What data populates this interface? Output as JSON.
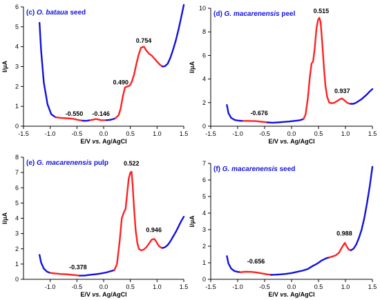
{
  "colors": {
    "oxidation": "#ff2020",
    "baseline": "#1010e0",
    "axis": "#000000",
    "title": "#1010e0"
  },
  "chart_data": [
    {
      "type": "line",
      "title_prefix": "(c) ",
      "title_italic": "O. bataua",
      "title_suffix": " seed",
      "xlabel_a": "E/V ",
      "xlabel_italic": "vs.",
      "xlabel_b": " Ag/AgCl",
      "ylabel": "I/μA",
      "xlim": [
        -1.5,
        1.5
      ],
      "ylim": [
        0,
        6
      ],
      "xticks": [
        -1.5,
        -1.0,
        -0.5,
        0.0,
        0.5,
        1.0,
        1.5
      ],
      "yticks": [
        0,
        1,
        2,
        3,
        4,
        5,
        6
      ],
      "grid": false,
      "series": [
        {
          "role": "baseline",
          "x": [
            -1.2,
            -1.17,
            -1.12,
            -1.05,
            -0.98,
            -0.9
          ],
          "y": [
            5.2,
            3.8,
            2.2,
            1.1,
            0.6,
            0.45
          ]
        },
        {
          "role": "oxidation",
          "x": [
            -0.9,
            -0.8,
            -0.7,
            -0.6,
            -0.55,
            -0.5,
            -0.45,
            -0.4
          ],
          "y": [
            0.45,
            0.42,
            0.4,
            0.38,
            0.36,
            0.33,
            0.3,
            0.28
          ]
        },
        {
          "role": "baseline",
          "x": [
            -0.4,
            -0.35,
            -0.3,
            -0.25
          ],
          "y": [
            0.28,
            0.27,
            0.28,
            0.3
          ]
        },
        {
          "role": "oxidation",
          "x": [
            -0.25,
            -0.18,
            -0.146,
            -0.1,
            -0.05,
            0.0,
            0.05
          ],
          "y": [
            0.3,
            0.34,
            0.36,
            0.34,
            0.3,
            0.3,
            0.3
          ]
        },
        {
          "role": "baseline",
          "x": [
            0.05,
            0.12,
            0.18,
            0.22
          ],
          "y": [
            0.3,
            0.32,
            0.36,
            0.4
          ]
        },
        {
          "role": "oxidation",
          "x": [
            0.22,
            0.28,
            0.32,
            0.36,
            0.4,
            0.45,
            0.49,
            0.53,
            0.57,
            0.61,
            0.65,
            0.7,
            0.754,
            0.8,
            0.85,
            0.9,
            0.95,
            1.0,
            1.05,
            1.1
          ],
          "y": [
            0.4,
            0.55,
            0.9,
            1.5,
            1.95,
            2.0,
            2.05,
            2.25,
            2.6,
            3.1,
            3.55,
            3.95,
            4.0,
            3.8,
            3.65,
            3.55,
            3.4,
            3.25,
            3.1,
            3.0
          ]
        },
        {
          "role": "baseline",
          "x": [
            1.1,
            1.15,
            1.2,
            1.25,
            1.3,
            1.35,
            1.4,
            1.45,
            1.5
          ],
          "y": [
            3.0,
            3.02,
            3.15,
            3.45,
            3.85,
            4.3,
            4.85,
            5.45,
            6.1
          ]
        }
      ],
      "annotations": [
        {
          "text": "-0.550",
          "x": -0.55,
          "y": 0.52
        },
        {
          "text": "-0.146",
          "x": -0.05,
          "y": 0.52
        },
        {
          "text": "0.490",
          "x": 0.32,
          "y": 2.1
        },
        {
          "text": "0.754",
          "x": 0.75,
          "y": 4.2
        }
      ]
    },
    {
      "type": "line",
      "title_prefix": "(d) ",
      "title_italic": "G. macarenensis",
      "title_suffix": " peel",
      "xlabel_a": "E/V ",
      "xlabel_italic": "vs.",
      "xlabel_b": " Ag/AgCl",
      "ylabel": "I/μA",
      "xlim": [
        -1.5,
        1.5
      ],
      "ylim": [
        0,
        10
      ],
      "xticks": [
        -1.5,
        -1.0,
        -0.5,
        0.0,
        0.5,
        1.0,
        1.5
      ],
      "yticks": [
        0,
        2,
        4,
        6,
        8,
        10
      ],
      "grid": false,
      "series": [
        {
          "role": "baseline",
          "x": [
            -1.2,
            -1.17,
            -1.12,
            -1.05,
            -0.98,
            -0.9
          ],
          "y": [
            1.8,
            1.1,
            0.7,
            0.52,
            0.47,
            0.45
          ]
        },
        {
          "role": "oxidation",
          "x": [
            -0.9,
            -0.8,
            -0.676,
            -0.55,
            -0.45
          ],
          "y": [
            0.45,
            0.45,
            0.43,
            0.38,
            0.32
          ]
        },
        {
          "role": "baseline",
          "x": [
            -0.45,
            -0.35,
            -0.25,
            -0.15,
            -0.05,
            0.05,
            0.15,
            0.22
          ],
          "y": [
            0.32,
            0.3,
            0.32,
            0.36,
            0.4,
            0.45,
            0.5,
            0.6
          ]
        },
        {
          "role": "oxidation",
          "x": [
            0.22,
            0.26,
            0.3,
            0.34,
            0.37,
            0.4,
            0.43,
            0.46,
            0.49,
            0.515,
            0.54,
            0.57,
            0.6,
            0.63,
            0.66,
            0.7,
            0.75,
            0.8,
            0.85,
            0.9,
            0.937,
            0.98,
            1.03,
            1.08,
            1.1
          ],
          "y": [
            0.6,
            1.0,
            2.3,
            4.2,
            5.3,
            5.5,
            6.6,
            8.2,
            9.0,
            9.2,
            8.8,
            7.0,
            5.0,
            3.4,
            2.5,
            2.0,
            1.95,
            2.0,
            2.15,
            2.3,
            2.35,
            2.2,
            2.0,
            1.9,
            1.9
          ]
        },
        {
          "role": "baseline",
          "x": [
            1.1,
            1.15,
            1.2,
            1.25,
            1.3,
            1.35,
            1.4,
            1.45,
            1.5
          ],
          "y": [
            1.9,
            1.9,
            2.0,
            2.15,
            2.3,
            2.5,
            2.7,
            2.95,
            3.15
          ]
        }
      ],
      "annotations": [
        {
          "text": "-0.676",
          "x": -0.6,
          "y": 0.95
        },
        {
          "text": "0.515",
          "x": 0.55,
          "y": 9.6
        },
        {
          "text": "0.937",
          "x": 0.94,
          "y": 2.8
        }
      ]
    },
    {
      "type": "line",
      "title_prefix": "(e) ",
      "title_italic": "G. macarenensis",
      "title_suffix": " pulp",
      "xlabel_a": "E/V ",
      "xlabel_italic": "vs.",
      "xlabel_b": " Ag/AgCl",
      "ylabel": "I/μA",
      "xlim": [
        -1.5,
        1.5
      ],
      "ylim": [
        0,
        8
      ],
      "xticks": [
        -1.0,
        -0.5,
        0.0,
        0.5,
        1.0,
        1.5
      ],
      "yticks": [
        0,
        1,
        2,
        3,
        4,
        5,
        6,
        7,
        8
      ],
      "grid": false,
      "series": [
        {
          "role": "baseline",
          "x": [
            -1.2,
            -1.17,
            -1.12,
            -1.06,
            -1.0
          ],
          "y": [
            1.6,
            1.1,
            0.7,
            0.5,
            0.42
          ]
        },
        {
          "role": "oxidation",
          "x": [
            -1.0,
            -0.9,
            -0.8,
            -0.7,
            -0.6,
            -0.5,
            -0.45
          ],
          "y": [
            0.42,
            0.38,
            0.35,
            0.33,
            0.3,
            0.26,
            0.24
          ]
        },
        {
          "role": "baseline",
          "x": [
            -0.45,
            -0.35,
            -0.25,
            -0.15,
            -0.05,
            0.05,
            0.12,
            0.2
          ],
          "y": [
            0.24,
            0.25,
            0.3,
            0.33,
            0.38,
            0.45,
            0.52,
            0.6
          ]
        },
        {
          "role": "oxidation",
          "x": [
            0.2,
            0.25,
            0.3,
            0.34,
            0.38,
            0.41,
            0.44,
            0.47,
            0.5,
            0.522,
            0.54,
            0.57,
            0.6,
            0.63,
            0.66,
            0.7,
            0.75,
            0.8,
            0.85,
            0.9,
            0.946,
            0.98,
            1.02,
            1.06,
            1.1
          ],
          "y": [
            0.6,
            1.0,
            2.5,
            4.0,
            4.4,
            4.6,
            5.6,
            6.6,
            7.0,
            7.05,
            6.3,
            4.6,
            3.2,
            2.4,
            2.0,
            1.9,
            1.95,
            2.1,
            2.35,
            2.6,
            2.65,
            2.5,
            2.25,
            2.1,
            2.05
          ]
        },
        {
          "role": "baseline",
          "x": [
            1.1,
            1.15,
            1.2,
            1.25,
            1.3,
            1.35,
            1.4,
            1.45,
            1.5
          ],
          "y": [
            2.05,
            2.1,
            2.25,
            2.5,
            2.8,
            3.1,
            3.45,
            3.8,
            4.1
          ]
        }
      ],
      "annotations": [
        {
          "text": "-0.378",
          "x": -0.48,
          "y": 0.65
        },
        {
          "text": "0.522",
          "x": 0.52,
          "y": 7.45
        },
        {
          "text": "0.946",
          "x": 0.94,
          "y": 3.1
        }
      ]
    },
    {
      "type": "line",
      "title_prefix": "(f) ",
      "title_italic": "G. macarenensis",
      "title_suffix": " seed",
      "xlabel_a": "E/V ",
      "xlabel_italic": "vs.",
      "xlabel_b": " Ag/AgCl",
      "ylabel": "I/μA",
      "xlim": [
        -1.5,
        1.5
      ],
      "ylim": [
        0,
        7
      ],
      "xticks": [
        -1.5,
        -1.0,
        -0.5,
        0.0,
        0.5,
        1.0,
        1.5
      ],
      "yticks": [
        0,
        1,
        2,
        3,
        4,
        5,
        6,
        7
      ],
      "grid": false,
      "series": [
        {
          "role": "baseline",
          "x": [
            -1.2,
            -1.17,
            -1.12,
            -1.06,
            -1.0,
            -0.95
          ],
          "y": [
            1.4,
            0.95,
            0.65,
            0.5,
            0.45,
            0.43
          ]
        },
        {
          "role": "oxidation",
          "x": [
            -0.95,
            -0.85,
            -0.75,
            -0.656,
            -0.55,
            -0.45,
            -0.38
          ],
          "y": [
            0.43,
            0.46,
            0.45,
            0.42,
            0.36,
            0.3,
            0.27
          ]
        },
        {
          "role": "baseline",
          "x": [
            -0.38,
            -0.3,
            -0.2,
            -0.1,
            0.0,
            0.1,
            0.2,
            0.3,
            0.35,
            0.4,
            0.45,
            0.5,
            0.55,
            0.6,
            0.65,
            0.7
          ],
          "y": [
            0.27,
            0.28,
            0.3,
            0.33,
            0.38,
            0.45,
            0.52,
            0.62,
            0.72,
            0.82,
            0.9,
            1.0,
            1.12,
            1.2,
            1.28,
            1.32
          ]
        },
        {
          "role": "oxidation",
          "x": [
            0.7,
            0.76,
            0.82,
            0.88,
            0.93,
            0.988,
            1.02,
            1.06,
            1.1
          ],
          "y": [
            1.32,
            1.38,
            1.45,
            1.6,
            1.9,
            2.2,
            2.0,
            1.8,
            1.75
          ]
        },
        {
          "role": "baseline",
          "x": [
            1.1,
            1.15,
            1.2,
            1.25,
            1.3,
            1.35,
            1.4,
            1.45,
            1.5
          ],
          "y": [
            1.75,
            1.85,
            2.1,
            2.5,
            3.0,
            3.7,
            4.6,
            5.6,
            6.8
          ]
        }
      ],
      "annotations": [
        {
          "text": "-0.656",
          "x": -0.66,
          "y": 0.95
        },
        {
          "text": "0.988",
          "x": 0.98,
          "y": 2.65
        }
      ]
    }
  ]
}
